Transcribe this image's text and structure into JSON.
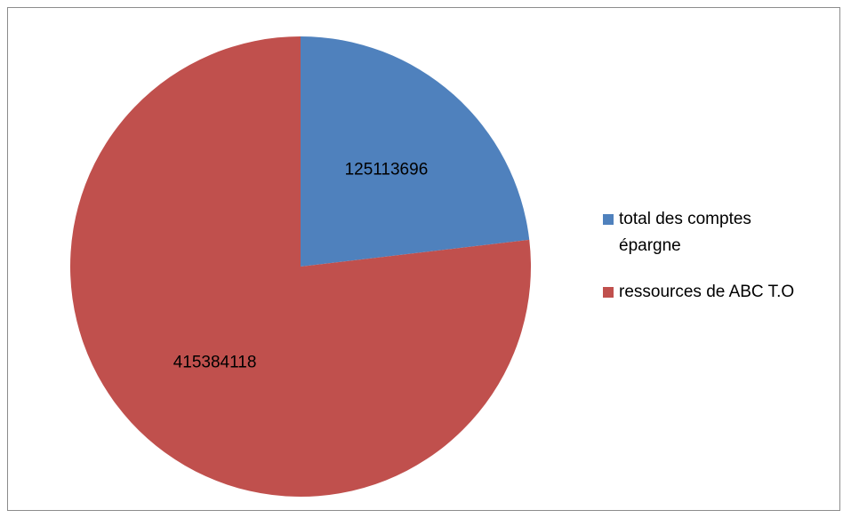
{
  "chart_data": {
    "type": "pie",
    "title": "",
    "legend_position": "right",
    "series": [
      {
        "categories": [
          "total des comptes épargne",
          "ressources de ABC T.O"
        ],
        "values": [
          125113696,
          415384118
        ],
        "data_labels": [
          "125113696",
          "415384118"
        ],
        "colors": [
          "#4f81bd",
          "#c0504d"
        ]
      }
    ]
  },
  "legend": {
    "items": [
      {
        "label": "total des comptes épargne",
        "color": "#4f81bd"
      },
      {
        "label": "ressources de ABC T.O",
        "color": "#c0504d"
      }
    ]
  }
}
